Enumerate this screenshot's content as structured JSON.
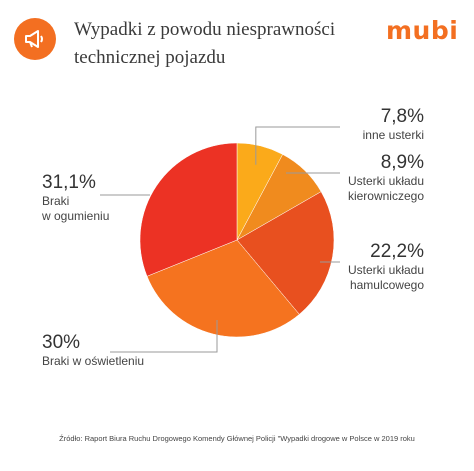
{
  "header": {
    "title_line1": "Wypadki z powodu niesprawności",
    "title_line2": "technicznej pojazdu",
    "brand": "mubi",
    "icon": "megaphone-icon",
    "accent": "#f36f21"
  },
  "chart_data": {
    "type": "pie",
    "title": "Wypadki z powodu niesprawności technicznej pojazdu",
    "unit": "%",
    "slices": [
      {
        "value_label": "7,8%",
        "label": "inne usterki",
        "value": 7.8,
        "color": "#fbaa1a"
      },
      {
        "value_label": "8,9%",
        "label": "Usterki układu kierowniczego",
        "label_lines": [
          "Usterki układu",
          "kierowniczego"
        ],
        "value": 8.9,
        "color": "#f08b1e"
      },
      {
        "value_label": "22,2%",
        "label": "Usterki układu hamulcowego",
        "label_lines": [
          "Usterki układu",
          "hamulcowego"
        ],
        "value": 22.2,
        "color": "#e8501f"
      },
      {
        "value_label": "30%",
        "label": "Braki w oświetleniu",
        "value": 30.0,
        "color": "#f5731f"
      },
      {
        "value_label": "31,1%",
        "label": "Braki w ogumieniu",
        "label_lines": [
          "Braki",
          "w ogumieniu"
        ],
        "value": 31.1,
        "color": "#ec3224"
      }
    ]
  },
  "source": "Źródło: Raport Biura Ruchu Drogowego Komendy Głównej Policji \"Wypadki drogowe w Polsce w 2019 roku"
}
